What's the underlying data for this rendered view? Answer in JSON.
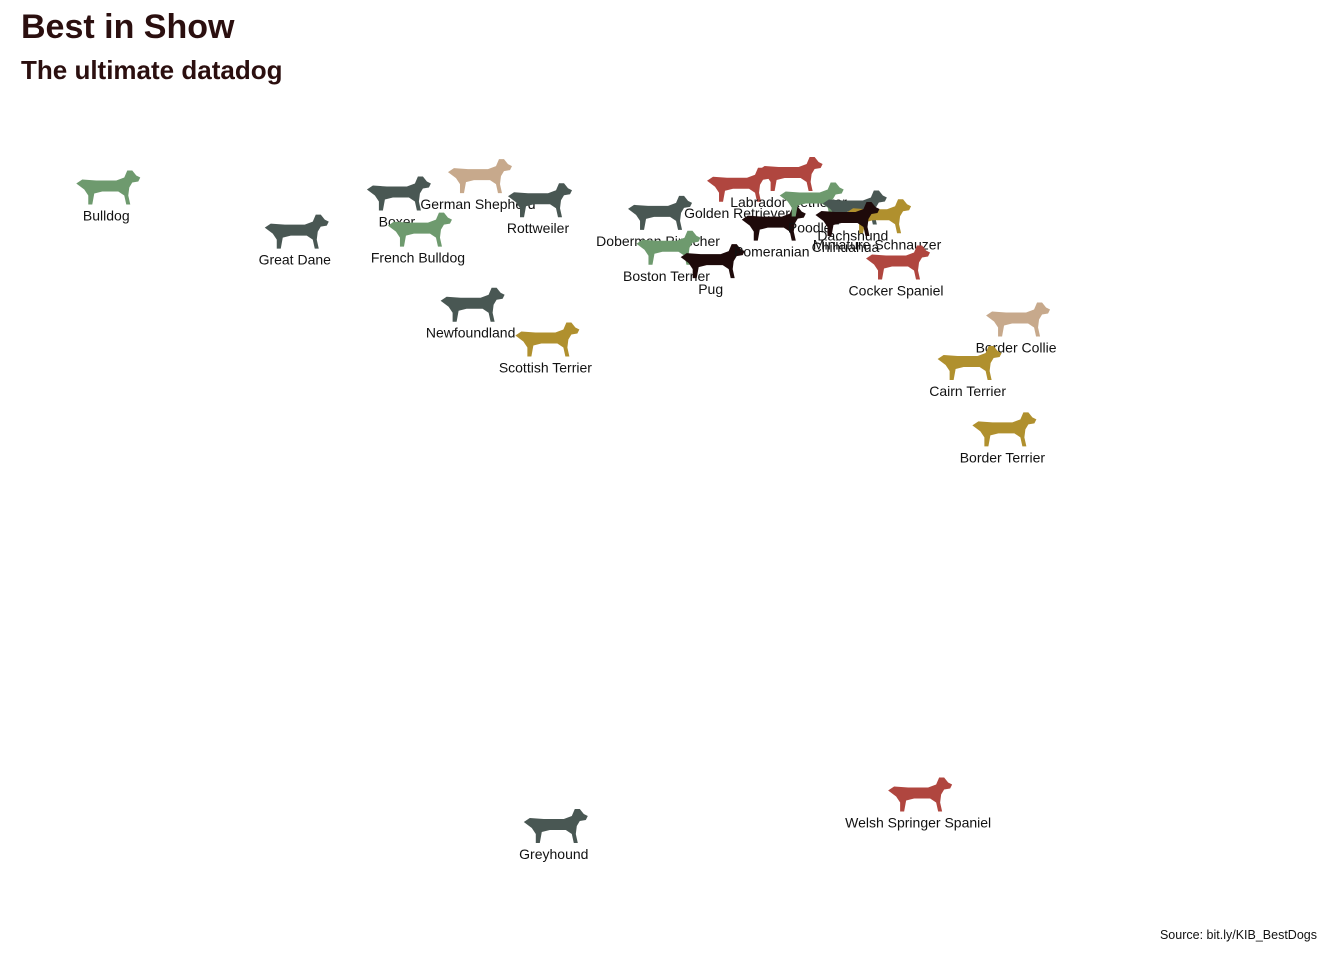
{
  "header": {
    "title": "Best in Show",
    "subtitle": "The ultimate datadog"
  },
  "footer": {
    "source": "Source: bit.ly/KIB_BestDogs"
  },
  "palette": {
    "red": "#b0463f",
    "green": "#6e9a6e",
    "slate": "#495753",
    "tan": "#c7a98c",
    "gold": "#b0902e",
    "black": "#1e0a0a",
    "text": "#111111"
  },
  "chart_data": {
    "type": "scatter",
    "title": "Best in Show",
    "subtitle": "The ultimate datadog",
    "xlabel": "",
    "ylabel": "",
    "grid": false,
    "legend": "none",
    "xlim": [
      0,
      100
    ],
    "ylim": [
      0,
      100
    ],
    "points": [
      {
        "name": "Bulldog",
        "x": 2.4,
        "y": 96.2,
        "color": "green"
      },
      {
        "name": "Great Dane",
        "x": 20.3,
        "y": 89.6,
        "color": "slate"
      },
      {
        "name": "Boxer",
        "x": 30.0,
        "y": 95.3,
        "color": "slate"
      },
      {
        "name": "French Bulldog",
        "x": 32.0,
        "y": 89.9,
        "color": "green"
      },
      {
        "name": "German Shepherd",
        "x": 37.7,
        "y": 97.9,
        "color": "tan"
      },
      {
        "name": "Rottweiler",
        "x": 43.4,
        "y": 94.3,
        "color": "slate"
      },
      {
        "name": "Newfoundland",
        "x": 37.0,
        "y": 78.7,
        "color": "slate"
      },
      {
        "name": "Scottish Terrier",
        "x": 44.1,
        "y": 73.5,
        "color": "gold"
      },
      {
        "name": "Greyhound",
        "x": 44.9,
        "y": 0.9,
        "color": "slate"
      },
      {
        "name": "Doberman Pinscher",
        "x": 54.8,
        "y": 92.4,
        "color": "slate"
      },
      {
        "name": "Boston Terrier",
        "x": 55.6,
        "y": 87.2,
        "color": "green"
      },
      {
        "name": "Pug",
        "x": 59.8,
        "y": 85.2,
        "color": "black"
      },
      {
        "name": "Golden Retriever",
        "x": 62.3,
        "y": 96.6,
        "color": "red"
      },
      {
        "name": "Labrador Retriever",
        "x": 67.2,
        "y": 98.2,
        "color": "red"
      },
      {
        "name": "Pomeranian",
        "x": 65.6,
        "y": 90.8,
        "color": "black"
      },
      {
        "name": "Poodle",
        "x": 69.2,
        "y": 94.4,
        "color": "green"
      },
      {
        "name": "Dachshund",
        "x": 73.3,
        "y": 93.2,
        "color": "slate"
      },
      {
        "name": "Miniature Schnauzer",
        "x": 75.6,
        "y": 91.9,
        "color": "gold"
      },
      {
        "name": "Chihuahua",
        "x": 72.6,
        "y": 91.5,
        "color": "black"
      },
      {
        "name": "Cocker Spaniel",
        "x": 77.4,
        "y": 85.0,
        "color": "red"
      },
      {
        "name": "Border Collie",
        "x": 88.8,
        "y": 76.5,
        "color": "tan"
      },
      {
        "name": "Cairn Terrier",
        "x": 84.2,
        "y": 70.0,
        "color": "gold"
      },
      {
        "name": "Border Terrier",
        "x": 87.5,
        "y": 60.1,
        "color": "gold"
      },
      {
        "name": "Welsh Springer Spaniel",
        "x": 79.5,
        "y": 5.6,
        "color": "red"
      }
    ]
  }
}
